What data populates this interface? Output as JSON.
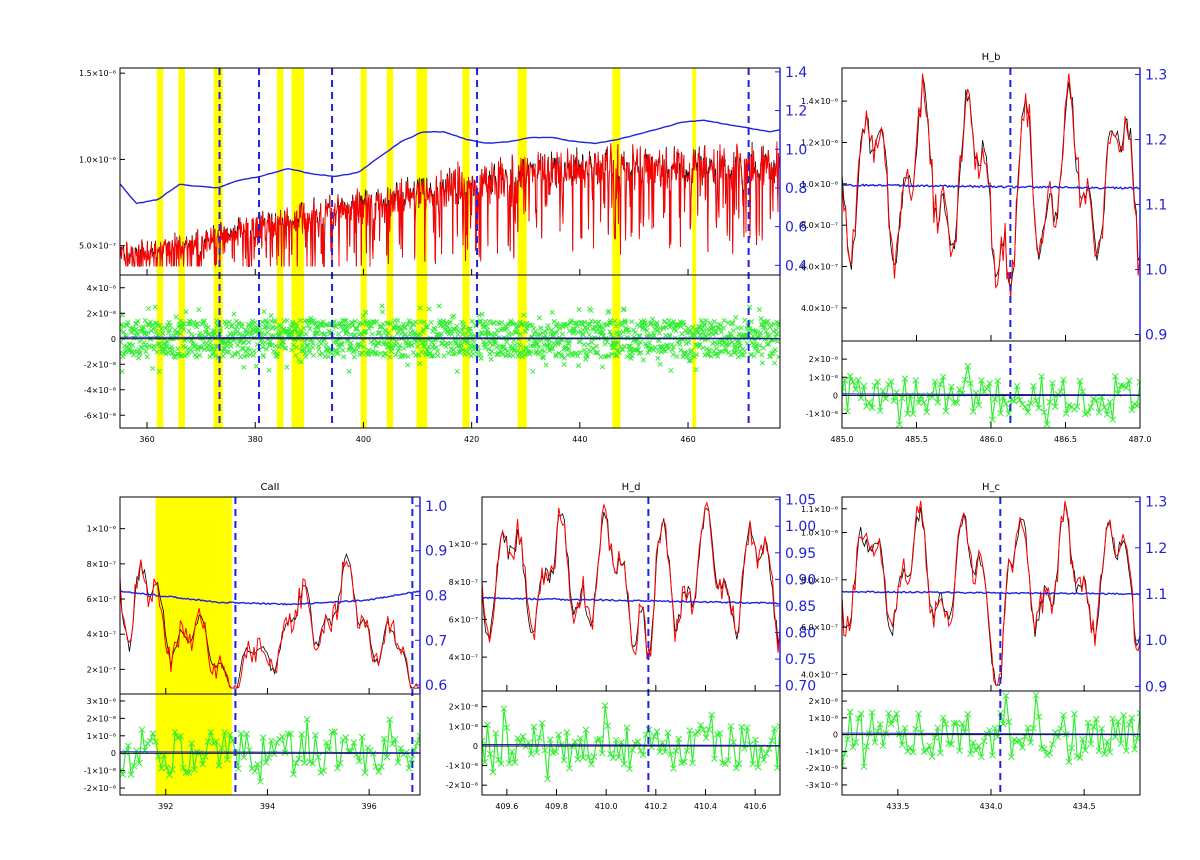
{
  "colors": {
    "observed": "#000000",
    "model": "#ff0000",
    "continuum": "#2222dd",
    "residual": "#33ee33",
    "masked": "#ffff00",
    "line_marker": "#2222dd",
    "right_axis": "#2222dd"
  },
  "chart_data": [
    {
      "id": "full",
      "type": "line",
      "title": "",
      "xlabel": "",
      "ylabel": "",
      "xlim": [
        355,
        477
      ],
      "xticks": [
        "360",
        "380",
        "400",
        "420",
        "440",
        "460",
        "480"
      ],
      "main": {
        "ylim": [
          3.3e-07,
          1.53e-06
        ],
        "yticks_left": [
          {
            "v": 5e-07,
            "label": "5.0×10⁻⁷"
          },
          {
            "v": 1e-06,
            "label": "1.0×10⁻⁶"
          },
          {
            "v": 1.5e-06,
            "label": "1.5×10⁻⁶"
          }
        ],
        "ylim_right": [
          0.35,
          1.42
        ],
        "yticks_right": [
          {
            "v": 0.4,
            "label": "0.4"
          },
          {
            "v": 0.6,
            "label": "0.6"
          },
          {
            "v": 0.8,
            "label": "0.8"
          },
          {
            "v": 1.0,
            "label": "1.0"
          },
          {
            "v": 1.2,
            "label": "1.2"
          },
          {
            "v": 1.4,
            "label": "1.4"
          }
        ]
      },
      "residual": {
        "ylim": [
          -7e-08,
          5e-08
        ],
        "yticks_left": [
          {
            "v": 4e-08,
            "label": "4×10⁻⁸"
          },
          {
            "v": 2e-08,
            "label": "2×10⁻⁸"
          },
          {
            "v": 0,
            "label": "0"
          },
          {
            "v": -2e-08,
            "label": "-2×10⁻⁸"
          },
          {
            "v": -4e-08,
            "label": "-4×10⁻⁸"
          },
          {
            "v": -6e-08,
            "label": "-6×10⁻⁸"
          }
        ]
      },
      "mask_regions": [
        [
          361.8,
          363.0
        ],
        [
          365.8,
          367.0
        ],
        [
          372.3,
          374.0
        ],
        [
          384.0,
          385.2
        ],
        [
          386.7,
          389.0
        ],
        [
          399.5,
          400.6
        ],
        [
          404.3,
          405.5
        ],
        [
          409.8,
          411.8
        ],
        [
          418.3,
          419.6
        ],
        [
          428.5,
          430.2
        ],
        [
          446.0,
          447.5
        ],
        [
          460.8,
          461.5
        ]
      ],
      "line_markers": [
        373.4,
        380.7,
        394.2,
        421.0,
        471.2
      ],
      "continuum": [
        [
          355,
          0.82
        ],
        [
          358,
          0.72
        ],
        [
          362,
          0.74
        ],
        [
          366,
          0.82
        ],
        [
          369,
          0.81
        ],
        [
          373,
          0.8
        ],
        [
          377,
          0.84
        ],
        [
          381,
          0.86
        ],
        [
          386,
          0.9
        ],
        [
          391,
          0.87
        ],
        [
          395,
          0.86
        ],
        [
          399,
          0.88
        ],
        [
          403,
          0.96
        ],
        [
          407,
          1.04
        ],
        [
          411,
          1.09
        ],
        [
          415,
          1.09
        ],
        [
          419,
          1.05
        ],
        [
          423,
          1.03
        ],
        [
          427,
          1.04
        ],
        [
          431,
          1.06
        ],
        [
          435,
          1.06
        ],
        [
          439,
          1.04
        ],
        [
          443,
          1.03
        ],
        [
          447,
          1.05
        ],
        [
          451,
          1.08
        ],
        [
          455,
          1.11
        ],
        [
          459,
          1.14
        ],
        [
          463,
          1.15
        ],
        [
          467,
          1.13
        ],
        [
          471,
          1.11
        ],
        [
          475,
          1.09
        ],
        [
          477,
          1.1
        ]
      ],
      "flux_envelope": [
        [
          355,
          0.5
        ],
        [
          365,
          0.55
        ],
        [
          375,
          0.62
        ],
        [
          385,
          0.72
        ],
        [
          395,
          0.78
        ],
        [
          405,
          0.86
        ],
        [
          415,
          0.92
        ],
        [
          425,
          0.98
        ],
        [
          435,
          1.05
        ],
        [
          445,
          1.07
        ],
        [
          455,
          1.06
        ],
        [
          465,
          1.08
        ],
        [
          477,
          1.06
        ]
      ]
    },
    {
      "id": "hb",
      "type": "line",
      "title": "H_b",
      "xlim": [
        485.0,
        487.0
      ],
      "xticks": [
        "485.0",
        "485.5",
        "486.0",
        "486.5",
        "487.0"
      ],
      "main": {
        "ylim": [
          2.4e-07,
          1.56e-06
        ],
        "yticks_left": [
          {
            "v": 4e-07,
            "label": "4.0×10⁻⁷"
          },
          {
            "v": 6e-07,
            "label": "6.0×10⁻⁷"
          },
          {
            "v": 8e-07,
            "label": "8.0×10⁻⁷"
          },
          {
            "v": 1e-06,
            "label": "1.0×10⁻⁶"
          },
          {
            "v": 1.2e-06,
            "label": "1.2×10⁻⁶"
          },
          {
            "v": 1.4e-06,
            "label": "1.4×10⁻⁶"
          }
        ],
        "ylim_right": [
          0.89,
          1.31
        ],
        "yticks_right": [
          {
            "v": 0.9,
            "label": "0.9"
          },
          {
            "v": 1.0,
            "label": "1.0"
          },
          {
            "v": 1.1,
            "label": "1.1"
          },
          {
            "v": 1.2,
            "label": "1.2"
          },
          {
            "v": 1.3,
            "label": "1.3"
          }
        ]
      },
      "residual": {
        "ylim": [
          -1.8e-08,
          3e-08
        ],
        "yticks_left": [
          {
            "v": 2e-08,
            "label": "2×10⁻⁸"
          },
          {
            "v": 1e-08,
            "label": "1×10⁻⁸"
          },
          {
            "v": 0,
            "label": "0"
          },
          {
            "v": -1e-08,
            "label": "-1×10⁻⁸"
          }
        ]
      },
      "mask_regions": [],
      "line_markers": [
        486.13
      ],
      "continuum": [
        [
          485.0,
          1.13
        ],
        [
          487.0,
          1.125
        ]
      ]
    },
    {
      "id": "caii",
      "type": "line",
      "title": "CaII",
      "xlim": [
        391.1,
        397.0
      ],
      "xticks": [
        "392",
        "394",
        "396",
        "398"
      ],
      "main": {
        "ylim": [
          6e-08,
          1.18e-06
        ],
        "yticks_left": [
          {
            "v": 2e-07,
            "label": "2×10⁻⁷"
          },
          {
            "v": 4e-07,
            "label": "4×10⁻⁷"
          },
          {
            "v": 6e-07,
            "label": "6×10⁻⁷"
          },
          {
            "v": 8e-07,
            "label": "8×10⁻⁷"
          },
          {
            "v": 1e-06,
            "label": "1×10⁻⁶"
          }
        ],
        "ylim_right": [
          0.58,
          1.02
        ],
        "yticks_right": [
          {
            "v": 0.6,
            "label": "0.6"
          },
          {
            "v": 0.7,
            "label": "0.7"
          },
          {
            "v": 0.8,
            "label": "0.8"
          },
          {
            "v": 0.9,
            "label": "0.9"
          },
          {
            "v": 1.0,
            "label": "1.0"
          }
        ]
      },
      "residual": {
        "ylim": [
          -2.4e-08,
          3.4e-08
        ],
        "yticks_left": [
          {
            "v": 3e-08,
            "label": "3×10⁻⁸"
          },
          {
            "v": 2e-08,
            "label": "2×10⁻⁸"
          },
          {
            "v": 1e-08,
            "label": "1×10⁻⁸"
          },
          {
            "v": 0,
            "label": "0"
          },
          {
            "v": -1e-08,
            "label": "-1×10⁻⁸"
          },
          {
            "v": -2e-08,
            "label": "-2×10⁻⁸"
          }
        ]
      },
      "mask_regions": [
        [
          391.8,
          393.3
        ]
      ],
      "line_markers": [
        393.37,
        396.85
      ],
      "continuum": [
        [
          391.1,
          0.81
        ],
        [
          393,
          0.785
        ],
        [
          394.5,
          0.78
        ],
        [
          396,
          0.79
        ],
        [
          397,
          0.81
        ]
      ]
    },
    {
      "id": "hd",
      "type": "line",
      "title": "H_d",
      "xlim": [
        409.5,
        410.7
      ],
      "xticks": [
        "409.6",
        "409.8",
        "410.0",
        "410.2",
        "410.4",
        "410.6"
      ],
      "main": {
        "ylim": [
          2.2e-07,
          1.25e-06
        ],
        "yticks_left": [
          {
            "v": 4e-07,
            "label": "4×10⁻⁷"
          },
          {
            "v": 6e-07,
            "label": "6×10⁻⁷"
          },
          {
            "v": 8e-07,
            "label": "8×10⁻⁷"
          },
          {
            "v": 1e-06,
            "label": "1×10⁻⁶"
          }
        ],
        "ylim_right": [
          0.69,
          1.055
        ],
        "yticks_right": [
          {
            "v": 0.7,
            "label": "0.70"
          },
          {
            "v": 0.75,
            "label": "0.75"
          },
          {
            "v": 0.8,
            "label": "0.80"
          },
          {
            "v": 0.85,
            "label": "0.85"
          },
          {
            "v": 0.9,
            "label": "0.90"
          },
          {
            "v": 0.95,
            "label": "0.95"
          },
          {
            "v": 1.0,
            "label": "1.00"
          },
          {
            "v": 1.05,
            "label": "1.05"
          }
        ]
      },
      "residual": {
        "ylim": [
          -2.5e-08,
          2.8e-08
        ],
        "yticks_left": [
          {
            "v": 2e-08,
            "label": "2×10⁻⁸"
          },
          {
            "v": 1e-08,
            "label": "1×10⁻⁸"
          },
          {
            "v": 0,
            "label": "0"
          },
          {
            "v": -1e-08,
            "label": "-1×10⁻⁸"
          },
          {
            "v": -2e-08,
            "label": "-2×10⁻⁸"
          }
        ]
      },
      "mask_regions": [],
      "line_markers": [
        410.17
      ],
      "continuum": [
        [
          409.5,
          0.865
        ],
        [
          410.7,
          0.855
        ]
      ]
    },
    {
      "id": "hg",
      "type": "line",
      "title": "H_c",
      "xlim": [
        433.2,
        434.8
      ],
      "xticks": [
        "433.5",
        "434.0",
        "434.5"
      ],
      "main": {
        "ylim": [
          3.3e-07,
          1.15e-06
        ],
        "yticks_left": [
          {
            "v": 4e-07,
            "label": "4.0×10⁻⁷"
          },
          {
            "v": 6e-07,
            "label": "6.0×10⁻⁷"
          },
          {
            "v": 8e-07,
            "label": "8.0×10⁻⁷"
          },
          {
            "v": 1e-06,
            "label": "1.0×10⁻⁶"
          },
          {
            "v": 1.1e-06,
            "label": "1.1×10⁻⁶"
          }
        ],
        "ylim_right": [
          0.89,
          1.31
        ],
        "yticks_right": [
          {
            "v": 0.9,
            "label": "0.9"
          },
          {
            "v": 1.0,
            "label": "1.0"
          },
          {
            "v": 1.1,
            "label": "1.1"
          },
          {
            "v": 1.2,
            "label": "1.2"
          },
          {
            "v": 1.3,
            "label": "1.3"
          }
        ]
      },
      "residual": {
        "ylim": [
          -3.6e-08,
          2.6e-08
        ],
        "yticks_left": [
          {
            "v": 2e-08,
            "label": "2×10⁻⁸"
          },
          {
            "v": 1e-08,
            "label": "1×10⁻⁸"
          },
          {
            "v": 0,
            "label": "0"
          },
          {
            "v": -1e-08,
            "label": "-1×10⁻⁸"
          },
          {
            "v": -2e-08,
            "label": "-2×10⁻⁸"
          },
          {
            "v": -3e-08,
            "label": "-3×10⁻⁸"
          }
        ]
      },
      "mask_regions": [],
      "line_markers": [
        434.05
      ],
      "continuum": [
        [
          433.2,
          1.105
        ],
        [
          434.8,
          1.1
        ]
      ]
    }
  ]
}
